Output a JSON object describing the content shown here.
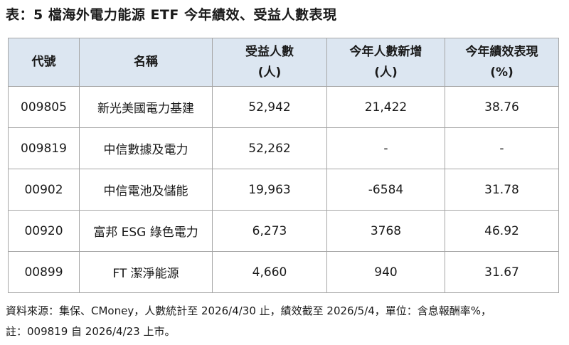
{
  "title": "表：5 檔海外電力能源 ETF 今年績效、受益人數表現",
  "table": {
    "headers": [
      {
        "line1": "代號",
        "line2": ""
      },
      {
        "line1": "名稱",
        "line2": ""
      },
      {
        "line1": "受益人數",
        "line2": "(人)"
      },
      {
        "line1": "今年人數新增",
        "line2": "(人)"
      },
      {
        "line1": "今年績效表現",
        "line2": "(%)"
      }
    ],
    "rows": [
      {
        "code": "009805",
        "name": "新光美國電力基建",
        "holders": "52,942",
        "new_holders": "21,422",
        "performance": "38.76"
      },
      {
        "code": "009819",
        "name": "中信數據及電力",
        "holders": "52,262",
        "new_holders": "-",
        "performance": "-"
      },
      {
        "code": "00902",
        "name": "中信電池及儲能",
        "holders": "19,963",
        "new_holders": "-6584",
        "performance": "31.78"
      },
      {
        "code": "00920",
        "name": "富邦 ESG 綠色電力",
        "holders": "6,273",
        "new_holders": "3768",
        "performance": "46.92"
      },
      {
        "code": "00899",
        "name": "FT 潔淨能源",
        "holders": "4,660",
        "new_holders": "940",
        "performance": "31.67"
      }
    ]
  },
  "notes": {
    "source": "資料來源：集保、CMoney，人數統計至 2026/4/30 止，績效截至 2026/5/4，單位：含息報酬率%，",
    "remark": "註：009819 自 2026/4/23 上市。"
  },
  "colors": {
    "header_bg": "#dce6f1",
    "border": "#a6a6a6"
  }
}
